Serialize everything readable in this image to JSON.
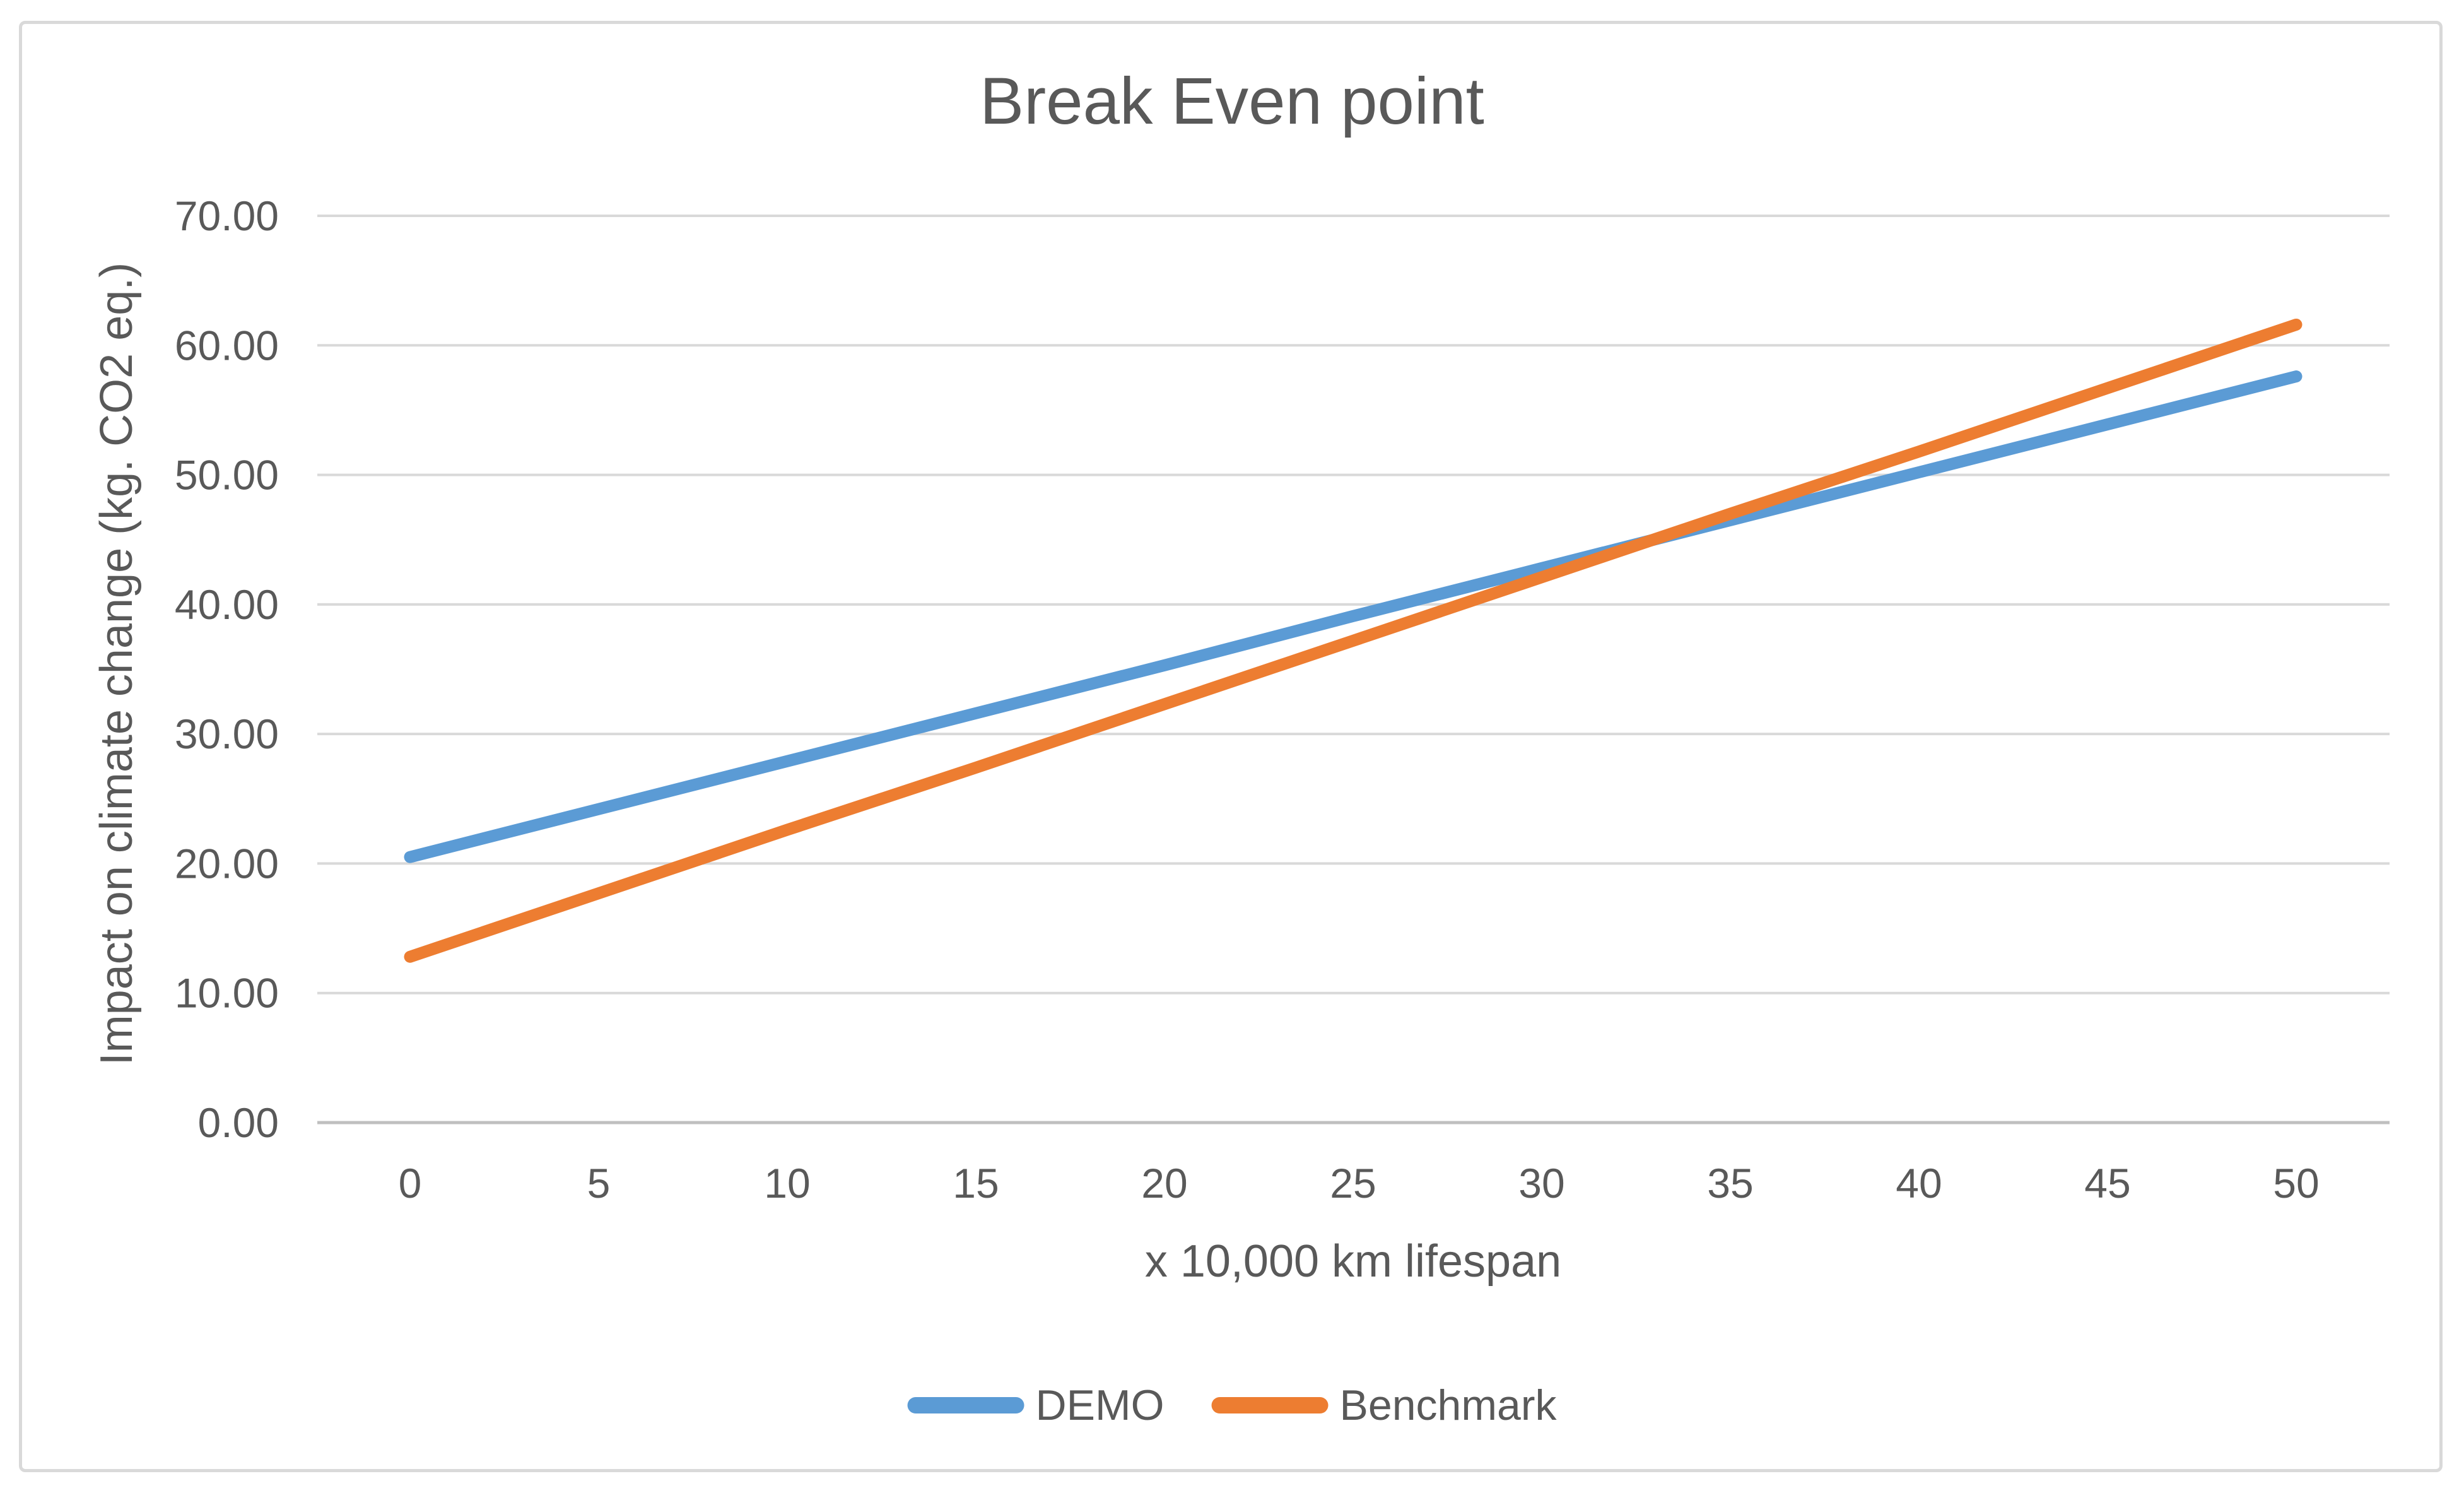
{
  "title": "Break Even point",
  "colors": {
    "demo_blue": "#5B9BD5",
    "benchmark_orange": "#ED7D31",
    "gridline": "#D9D9D9",
    "axis_line": "#BFBFBF",
    "text_gray": "#595959",
    "chart_border": "#D9D9D9"
  },
  "chart_data": {
    "type": "line",
    "title": "Break Even point",
    "xlabel": "x 10,000 km lifespan",
    "ylabel": "Impact on climate change (kg. CO2 eq.)",
    "x": [
      0,
      5,
      10,
      15,
      20,
      25,
      30,
      35,
      40,
      45,
      50
    ],
    "series": [
      {
        "name": "DEMO",
        "color": "#5B9BD5",
        "values": [
          20.5,
          24.2,
          27.9,
          31.6,
          35.3,
          39.1,
          42.8,
          46.5,
          50.2,
          53.9,
          57.6
        ]
      },
      {
        "name": "Benchmark",
        "color": "#ED7D31",
        "values": [
          12.8,
          17.7,
          22.6,
          27.4,
          32.3,
          37.2,
          42.1,
          47.0,
          51.8,
          56.7,
          61.6
        ]
      }
    ],
    "ylim": [
      0,
      70
    ],
    "ytick_step": 10,
    "ytick_labels": [
      "0.00",
      "10.00",
      "20.00",
      "30.00",
      "40.00",
      "50.00",
      "60.00",
      "70.00"
    ],
    "grid": true,
    "legend_position": "bottom",
    "break_even_x_approx": 33
  }
}
